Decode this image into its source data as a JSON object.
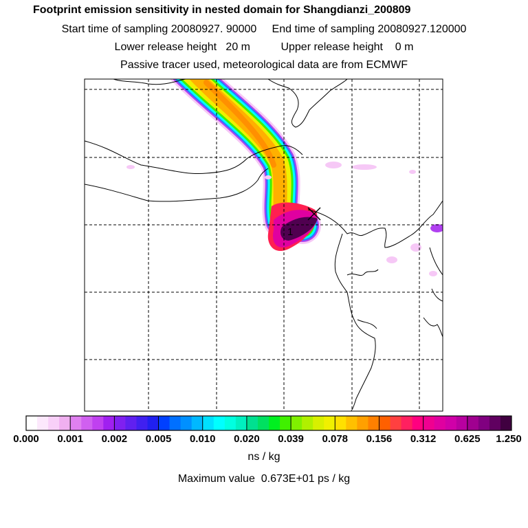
{
  "chart_data": {
    "type": "heatmap",
    "title": "Footprint emission sensitivity in nested domain for Shangdianzi_200809",
    "subtitle_lines": [
      "Start time of sampling 20080927. 90000     End time of sampling 20080927.120000",
      "Lower release height   20 m          Upper release height    0 m",
      "Passive tracer used, meteorological data are from ECMWF"
    ],
    "colorbar": {
      "tick_labels": [
        "0.000",
        "0.001",
        "0.002",
        "0.005",
        "0.010",
        "0.020",
        "0.039",
        "0.078",
        "0.156",
        "0.312",
        "0.625",
        "1.250"
      ],
      "colors": [
        "#ffffff",
        "#fce8fc",
        "#f8d0f8",
        "#f0b0f0",
        "#e080f0",
        "#d060f0",
        "#c040f0",
        "#a020f0",
        "#8020f0",
        "#6020f0",
        "#4020f0",
        "#2020f0",
        "#0040ff",
        "#0070ff",
        "#0090ff",
        "#00b8ff",
        "#00e0ff",
        "#00ffff",
        "#00ffe0",
        "#00f0c0",
        "#00e090",
        "#00e060",
        "#00f020",
        "#40f000",
        "#80f000",
        "#b0f000",
        "#d8f000",
        "#f0f000",
        "#ffe000",
        "#ffc000",
        "#ffa000",
        "#ff8000",
        "#ff6000",
        "#ff4040",
        "#ff2060",
        "#ff0080",
        "#f00090",
        "#e000a0",
        "#d000a8",
        "#b800a0",
        "#a00090",
        "#800080",
        "#600060",
        "#400040"
      ],
      "units": "ns / kg"
    },
    "max_value_text": "Maximum value  0.673E+01 ps / kg",
    "release_marker_label": "1"
  }
}
